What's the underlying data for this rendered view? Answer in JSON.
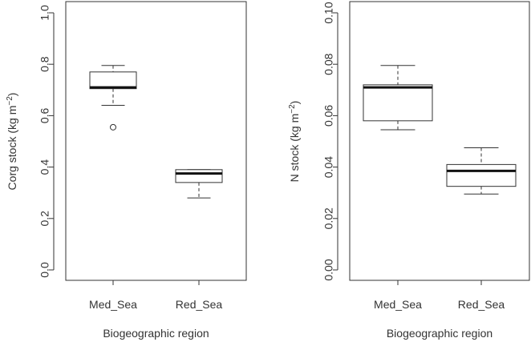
{
  "chart_data": [
    {
      "type": "boxplot",
      "title": "",
      "xlabel": "Biogeographic region",
      "ylabel": {
        "main": "Corg stock  (kg m",
        "sup": "−2",
        "close": ")"
      },
      "categories": [
        "Med_Sea",
        "Red_Sea"
      ],
      "ylim": [
        0,
        1.0
      ],
      "yticks": [
        "0.0",
        "0.2",
        "0.4",
        "0.6",
        "0.8",
        "1.0"
      ],
      "boxes": [
        {
          "category": "Med_Sea",
          "min": 0.64,
          "q1": 0.705,
          "median": 0.71,
          "q3": 0.77,
          "max": 0.795,
          "outliers": [
            0.555
          ]
        },
        {
          "category": "Red_Sea",
          "min": 0.28,
          "q1": 0.34,
          "median": 0.375,
          "q3": 0.39,
          "max": 0.39,
          "outliers": []
        }
      ],
      "grid": false
    },
    {
      "type": "boxplot",
      "title": "",
      "xlabel": "Biogeographic region",
      "ylabel": {
        "main": "N stock  (kg m",
        "sup": "−2",
        "close": ")"
      },
      "categories": [
        "Med_Sea",
        "Red_Sea"
      ],
      "ylim": [
        0,
        0.1
      ],
      "yticks": [
        "0.00",
        "0.02",
        "0.04",
        "0.06",
        "0.08",
        "0.10"
      ],
      "boxes": [
        {
          "category": "Med_Sea",
          "min": 0.0545,
          "q1": 0.058,
          "median": 0.071,
          "q3": 0.072,
          "max": 0.0795,
          "outliers": []
        },
        {
          "category": "Red_Sea",
          "min": 0.0295,
          "q1": 0.0325,
          "median": 0.0385,
          "q3": 0.041,
          "max": 0.0475,
          "outliers": []
        }
      ],
      "grid": false
    }
  ]
}
